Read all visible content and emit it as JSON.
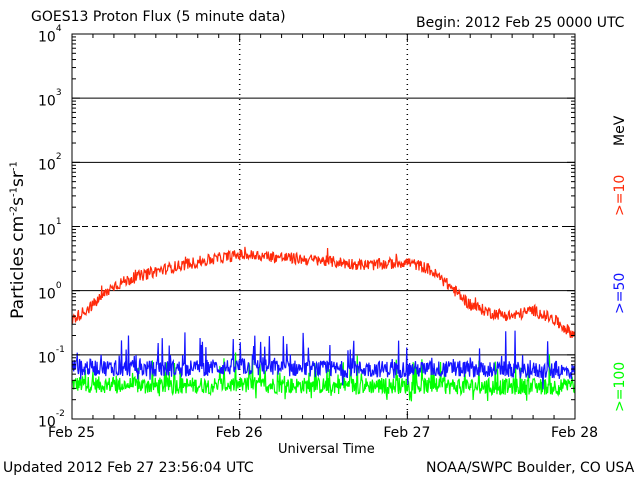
{
  "header": {
    "title": "GOES13 Proton Flux (5 minute data)",
    "begin": "Begin: 2012 Feb 25 0000 UTC"
  },
  "footer": {
    "updated": "Updated 2012 Feb 27 23:56:04 UTC",
    "credit": "NOAA/SWPC Boulder, CO USA"
  },
  "colors": {
    "ten_mev": "#ff2a0a",
    "fifty_mev": "#1414ff",
    "hundred_mev": "#00ff00",
    "axis": "#000000",
    "background": "#ffffff"
  },
  "chart_data": {
    "type": "line",
    "title": "GOES13 Proton Flux (5 minute data)",
    "xlabel": "Universal Time",
    "ylabel": "Particles cm^-2 s^-1 sr^-1",
    "yscale": "log",
    "ylim": [
      0.01,
      10000
    ],
    "xlim": [
      "2012-02-25",
      "2012-02-28"
    ],
    "x_ticks": [
      "Feb 25",
      "Feb 26",
      "Feb 27",
      "Feb 28"
    ],
    "y_ticks": [
      {
        "base": "10",
        "exp": "4"
      },
      {
        "base": "10",
        "exp": "3"
      },
      {
        "base": "10",
        "exp": "2"
      },
      {
        "base": "10",
        "exp": "1"
      },
      {
        "base": "10",
        "exp": "0"
      },
      {
        "base": "10",
        "exp": "-1"
      },
      {
        "base": "10",
        "exp": "-2"
      }
    ],
    "right_labels": [
      {
        "text": "MeV",
        "color": "#000000"
      },
      {
        "text": ">=10",
        "color": "#ff2a0a"
      },
      {
        "text": ">=50",
        "color": "#1414ff"
      },
      {
        "text": ">=100",
        "color": "#00ff00"
      }
    ],
    "threshold_lines": [
      {
        "value": 1000,
        "style": "solid"
      },
      {
        "value": 100,
        "style": "solid"
      },
      {
        "value": 10,
        "style": "dashed"
      },
      {
        "value": 1,
        "style": "solid"
      },
      {
        "value": 0.1,
        "style": "solid"
      }
    ],
    "grid": "dashed vertical lines at day boundaries",
    "series": [
      {
        "name": ">=10 MeV",
        "color": "#ff2a0a",
        "x": [
          "2012-02-25 00:00",
          "2012-02-25 03:00",
          "2012-02-25 06:00",
          "2012-02-25 09:00",
          "2012-02-25 12:00",
          "2012-02-25 15:00",
          "2012-02-25 18:00",
          "2012-02-25 21:00",
          "2012-02-26 00:00",
          "2012-02-26 03:00",
          "2012-02-26 06:00",
          "2012-02-26 09:00",
          "2012-02-26 12:00",
          "2012-02-26 15:00",
          "2012-02-26 18:00",
          "2012-02-26 21:00",
          "2012-02-27 00:00",
          "2012-02-27 03:00",
          "2012-02-27 06:00",
          "2012-02-27 09:00",
          "2012-02-27 12:00",
          "2012-02-27 15:00",
          "2012-02-27 18:00",
          "2012-02-27 21:00",
          "2012-02-28 00:00"
        ],
        "y": [
          0.35,
          0.6,
          1.2,
          1.6,
          2.0,
          2.4,
          2.8,
          3.2,
          3.6,
          3.5,
          3.3,
          3.1,
          2.9,
          2.7,
          2.5,
          2.6,
          2.8,
          2.2,
          1.2,
          0.6,
          0.45,
          0.4,
          0.5,
          0.35,
          0.2
        ]
      },
      {
        "name": ">=50 MeV",
        "color": "#1414ff",
        "x": [
          "2012-02-25 00:00",
          "2012-02-25 12:00",
          "2012-02-26 00:00",
          "2012-02-26 12:00",
          "2012-02-27 00:00",
          "2012-02-27 12:00",
          "2012-02-28 00:00"
        ],
        "y": [
          0.065,
          0.06,
          0.065,
          0.06,
          0.06,
          0.06,
          0.055
        ]
      },
      {
        "name": ">=100 MeV",
        "color": "#00ff00",
        "x": [
          "2012-02-25 00:00",
          "2012-02-25 12:00",
          "2012-02-26 00:00",
          "2012-02-26 12:00",
          "2012-02-27 00:00",
          "2012-02-27 12:00",
          "2012-02-28 00:00"
        ],
        "y": [
          0.035,
          0.033,
          0.034,
          0.033,
          0.033,
          0.032,
          0.032
        ]
      }
    ]
  }
}
